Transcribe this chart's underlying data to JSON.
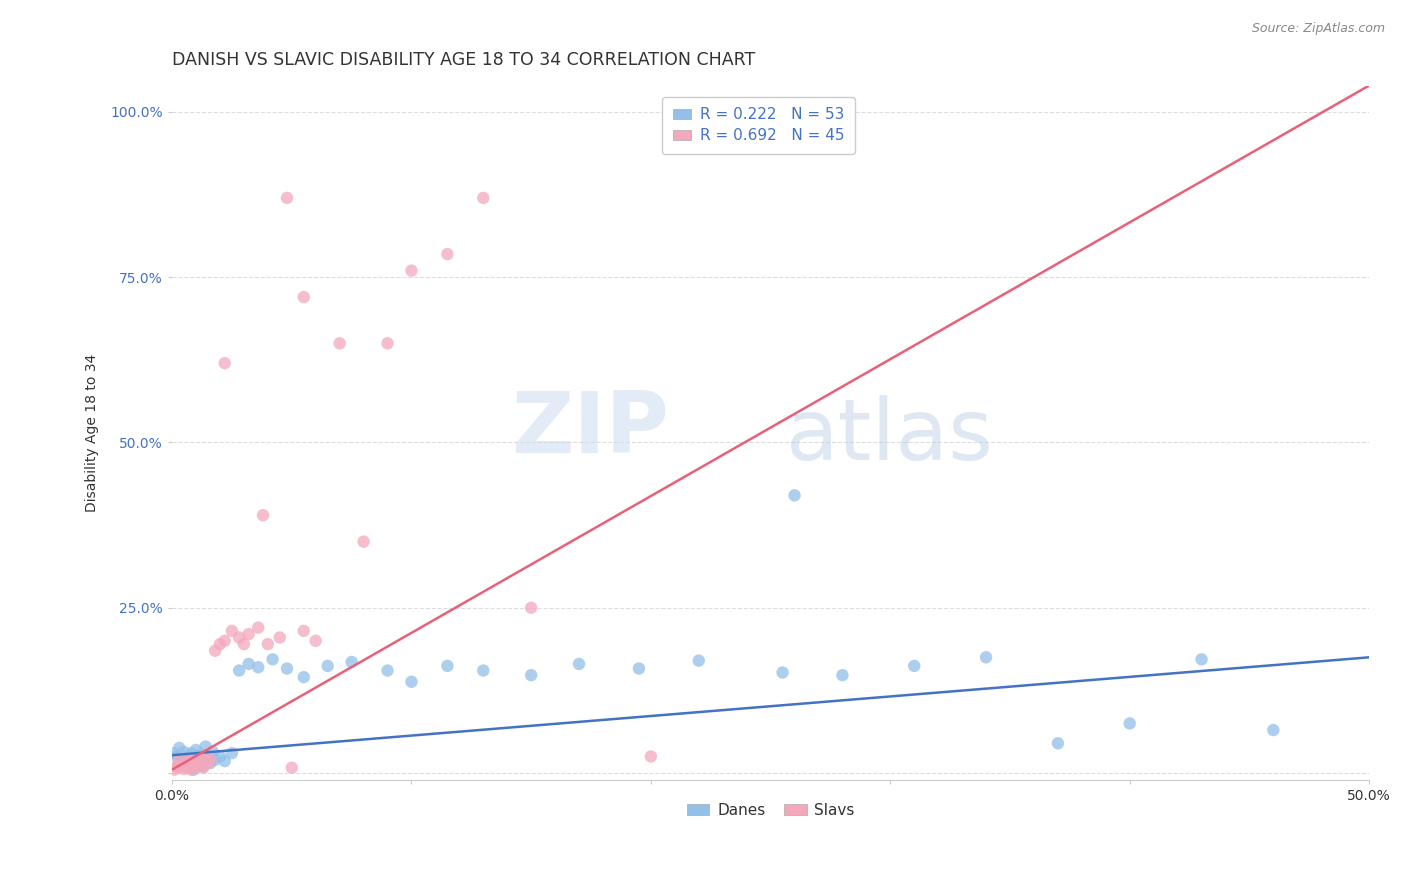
{
  "title": "DANISH VS SLAVIC DISABILITY AGE 18 TO 34 CORRELATION CHART",
  "source": "Source: ZipAtlas.com",
  "ylabel": "Disability Age 18 to 34",
  "xlim": [
    0.0,
    0.5
  ],
  "ylim": [
    -0.01,
    1.04
  ],
  "ytick_positions": [
    0.0,
    0.25,
    0.5,
    0.75,
    1.0
  ],
  "yticklabels": [
    "",
    "25.0%",
    "50.0%",
    "75.0%",
    "100.0%"
  ],
  "xtick_positions": [
    0.0,
    0.1,
    0.2,
    0.3,
    0.4,
    0.5
  ],
  "xticklabels": [
    "0.0%",
    "",
    "",
    "",
    "",
    "50.0%"
  ],
  "grid_color": "#dddddd",
  "background_color": "#ffffff",
  "danes_color": "#92c0e8",
  "slavs_color": "#f4a8bc",
  "danes_line_color": "#4472c4",
  "slavs_line_color": "#e8607a",
  "danes_R": 0.222,
  "danes_N": 53,
  "slavs_R": 0.692,
  "slavs_N": 45,
  "danes_line": [
    0.0,
    0.5,
    0.027,
    0.175
  ],
  "slavs_line": [
    0.0,
    0.5,
    0.005,
    1.04
  ],
  "watermark_zip": "ZIP",
  "watermark_atlas": "atlas",
  "title_fontsize": 12.5,
  "axis_label_fontsize": 10,
  "tick_fontsize": 10,
  "legend_fontsize": 11,
  "danes_x": [
    0.001,
    0.002,
    0.003,
    0.003,
    0.004,
    0.005,
    0.005,
    0.006,
    0.007,
    0.007,
    0.008,
    0.008,
    0.009,
    0.009,
    0.01,
    0.01,
    0.011,
    0.012,
    0.012,
    0.013,
    0.014,
    0.015,
    0.016,
    0.017,
    0.018,
    0.02,
    0.022,
    0.025,
    0.028,
    0.032,
    0.036,
    0.042,
    0.048,
    0.055,
    0.065,
    0.075,
    0.09,
    0.1,
    0.115,
    0.13,
    0.15,
    0.17,
    0.195,
    0.22,
    0.255,
    0.28,
    0.31,
    0.34,
    0.37,
    0.4,
    0.43,
    0.46,
    0.26
  ],
  "danes_y": [
    0.03,
    0.025,
    0.015,
    0.038,
    0.02,
    0.01,
    0.032,
    0.018,
    0.012,
    0.025,
    0.008,
    0.03,
    0.005,
    0.022,
    0.015,
    0.035,
    0.012,
    0.018,
    0.028,
    0.01,
    0.04,
    0.022,
    0.015,
    0.032,
    0.02,
    0.025,
    0.018,
    0.03,
    0.155,
    0.165,
    0.16,
    0.172,
    0.158,
    0.145,
    0.162,
    0.168,
    0.155,
    0.138,
    0.162,
    0.155,
    0.148,
    0.165,
    0.158,
    0.17,
    0.152,
    0.148,
    0.162,
    0.175,
    0.045,
    0.075,
    0.172,
    0.065,
    0.42
  ],
  "slavs_x": [
    0.001,
    0.002,
    0.003,
    0.003,
    0.004,
    0.005,
    0.005,
    0.006,
    0.007,
    0.007,
    0.008,
    0.008,
    0.009,
    0.01,
    0.011,
    0.012,
    0.013,
    0.014,
    0.015,
    0.016,
    0.018,
    0.02,
    0.022,
    0.025,
    0.028,
    0.03,
    0.032,
    0.036,
    0.04,
    0.045,
    0.05,
    0.055,
    0.06,
    0.07,
    0.08,
    0.09,
    0.1,
    0.115,
    0.13,
    0.15,
    0.048,
    0.022,
    0.038,
    0.055,
    0.2
  ],
  "slavs_y": [
    0.005,
    0.01,
    0.008,
    0.018,
    0.012,
    0.006,
    0.015,
    0.01,
    0.008,
    0.02,
    0.005,
    0.018,
    0.012,
    0.015,
    0.01,
    0.02,
    0.008,
    0.025,
    0.015,
    0.02,
    0.185,
    0.195,
    0.2,
    0.215,
    0.205,
    0.195,
    0.21,
    0.22,
    0.195,
    0.205,
    0.008,
    0.215,
    0.2,
    0.65,
    0.35,
    0.65,
    0.76,
    0.785,
    0.87,
    0.25,
    0.87,
    0.62,
    0.39,
    0.72,
    0.025
  ]
}
